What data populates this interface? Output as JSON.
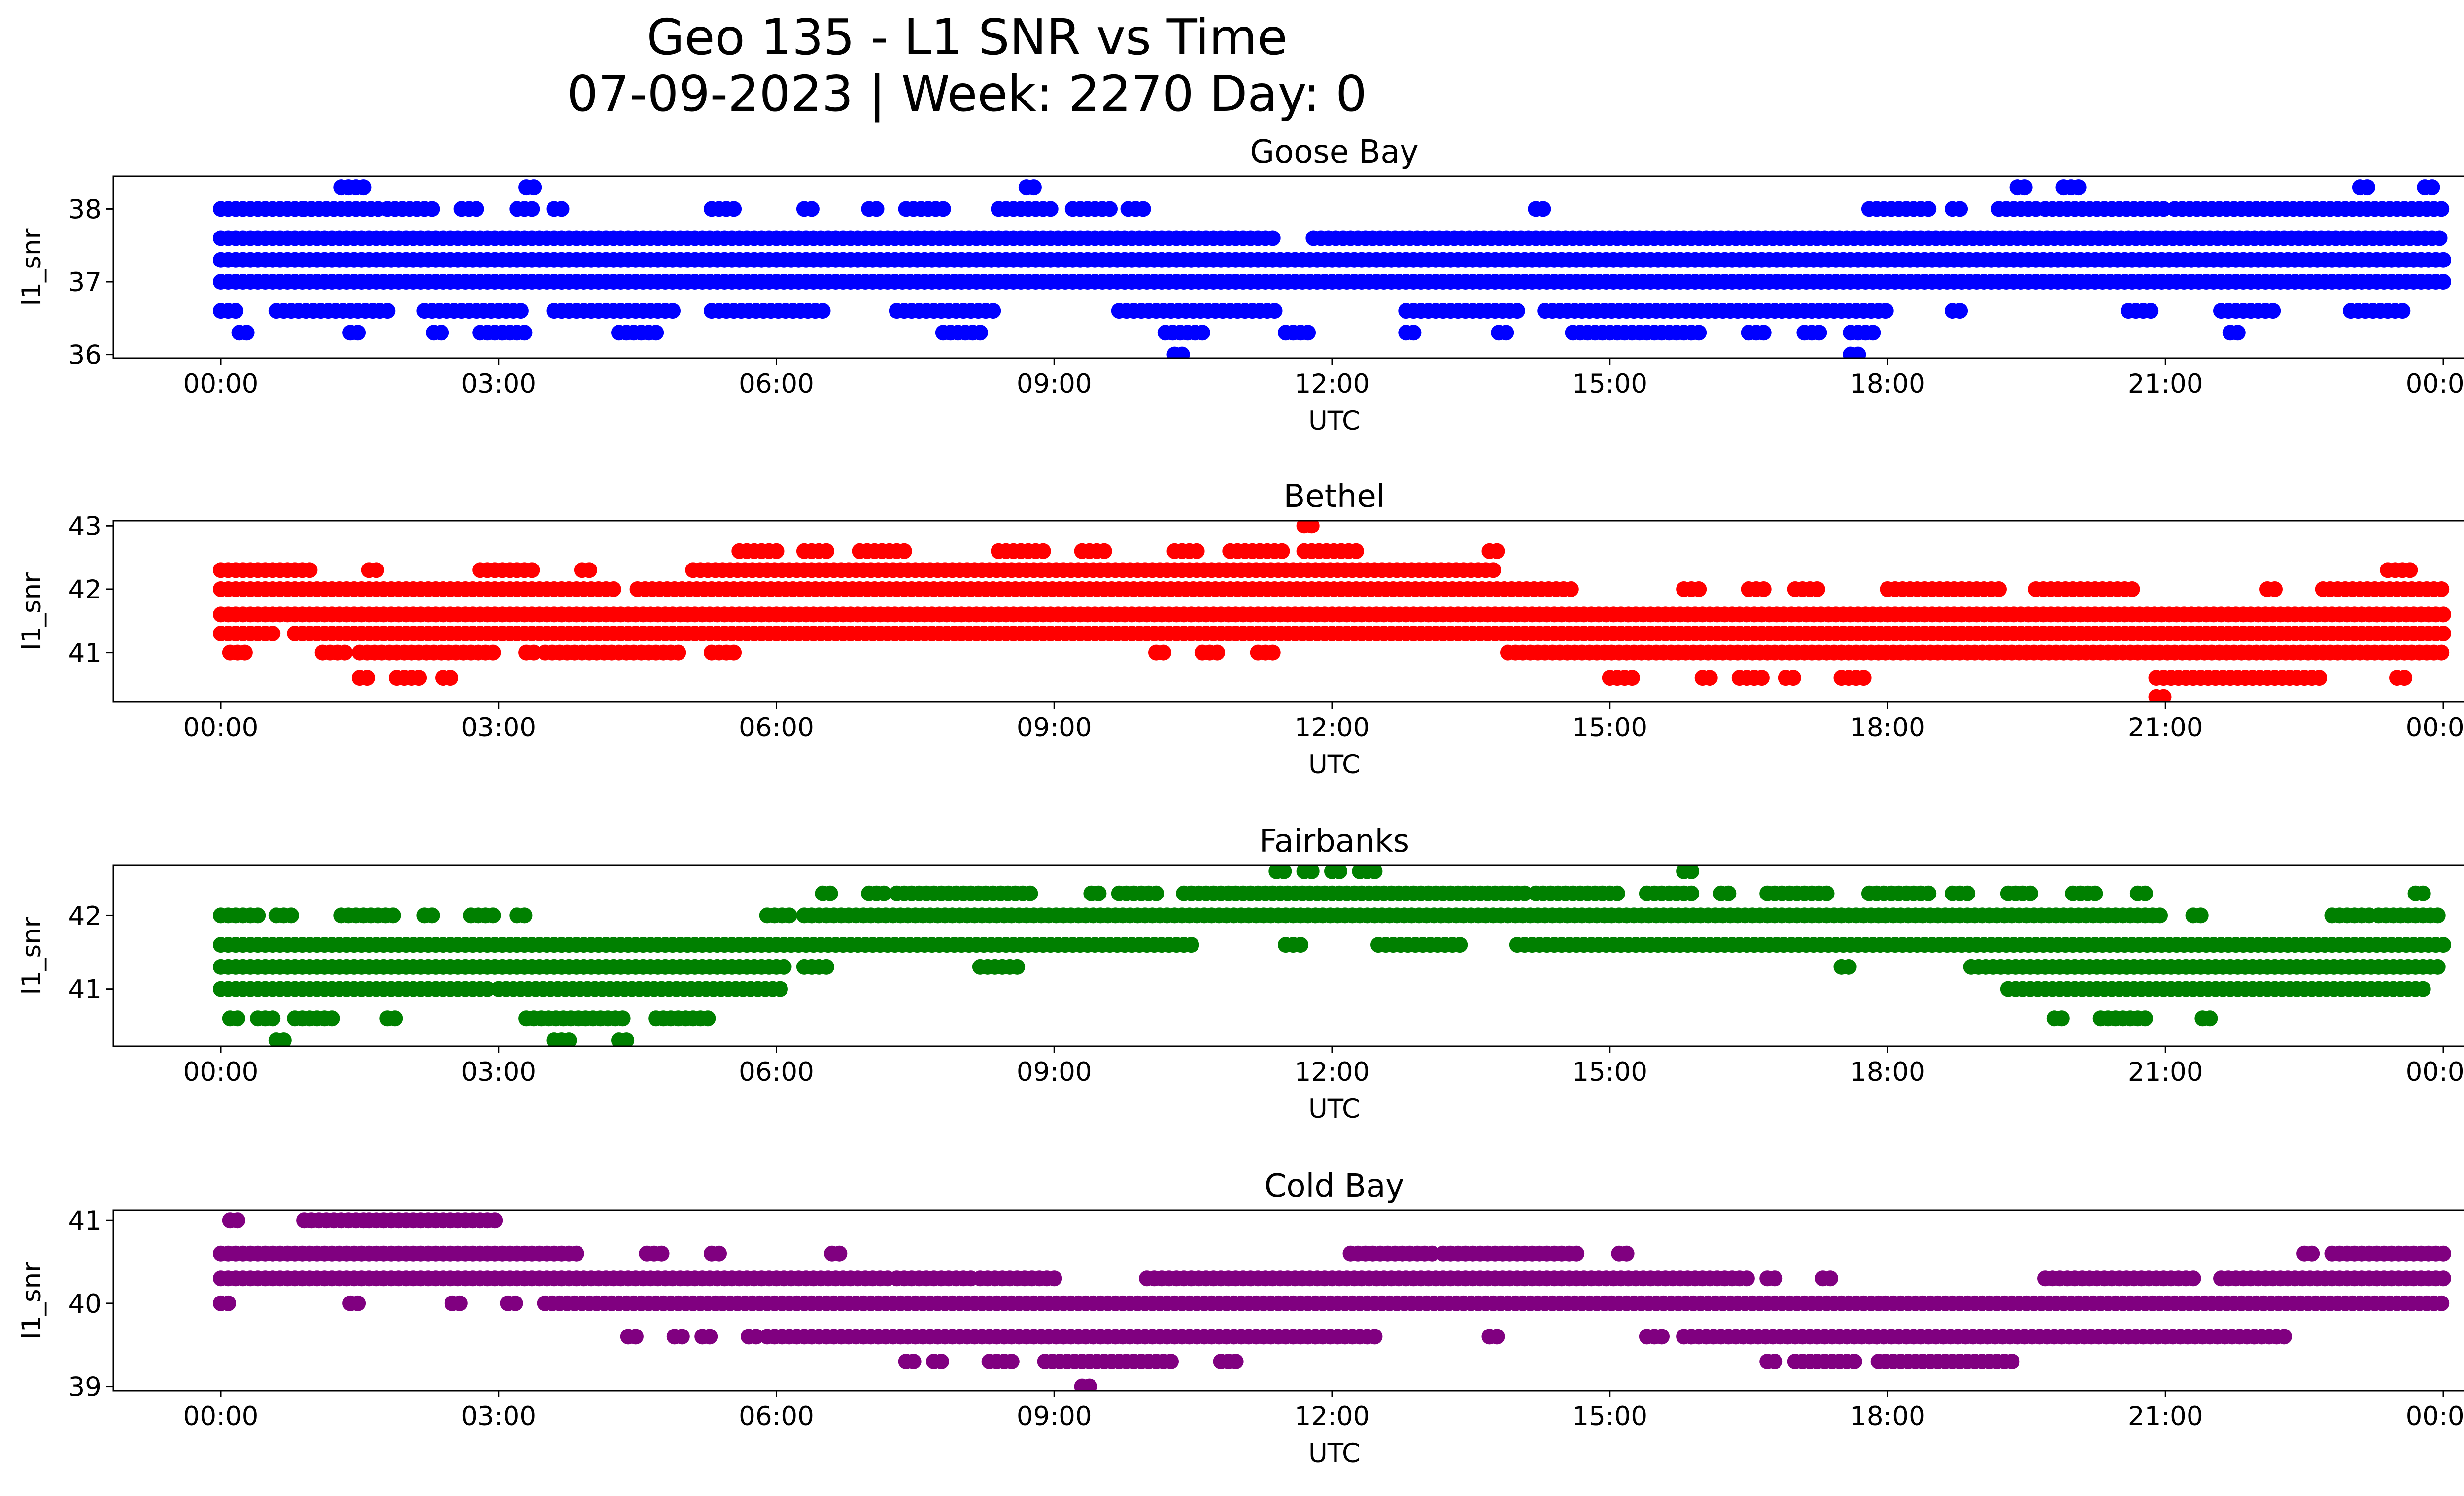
{
  "figure": {
    "title_line1": "Geo 135 - L1 SNR vs Time",
    "title_line2": "07-09-2023 | Week: 2270 Day: 0"
  },
  "chart_data": [
    {
      "type": "scatter",
      "title": "Goose Bay",
      "xlabel": "UTC",
      "ylabel": "l1_snr",
      "color": "#0000ff",
      "x_ticks": [
        "00:00",
        "03:00",
        "06:00",
        "09:00",
        "12:00",
        "15:00",
        "18:00",
        "21:00",
        "00:00"
      ],
      "y_ticks": [
        36,
        37,
        38
      ],
      "ylim": [
        35.95,
        38.45
      ],
      "series": [
        {
          "y": 37.0,
          "ranges": [
            [
              0.0,
              24.0
            ]
          ]
        },
        {
          "y": 37.3,
          "ranges": [
            [
              0.0,
              24.0
            ]
          ]
        },
        {
          "y": 37.6,
          "ranges": [
            [
              0.0,
              11.4
            ],
            [
              11.8,
              24.0
            ]
          ]
        },
        {
          "y": 36.6,
          "ranges": [
            [
              0.0,
              0.2
            ],
            [
              0.6,
              1.8
            ],
            [
              2.2,
              3.3
            ],
            [
              3.6,
              4.9
            ],
            [
              5.3,
              6.5
            ],
            [
              7.3,
              8.4
            ],
            [
              9.7,
              11.4
            ],
            [
              12.8,
              14.0
            ],
            [
              14.3,
              18.0
            ],
            [
              18.7,
              18.8
            ],
            [
              20.6,
              20.9
            ],
            [
              21.6,
              22.2
            ],
            [
              23.0,
              23.6
            ]
          ]
        },
        {
          "y": 36.3,
          "ranges": [
            [
              0.2,
              0.3
            ],
            [
              1.4,
              1.5
            ],
            [
              2.3,
              2.4
            ],
            [
              2.8,
              3.3
            ],
            [
              4.3,
              4.7
            ],
            [
              7.8,
              8.2
            ],
            [
              10.2,
              10.6
            ],
            [
              11.5,
              11.8
            ],
            [
              12.8,
              12.9
            ],
            [
              13.8,
              13.9
            ],
            [
              14.6,
              16.0
            ],
            [
              16.5,
              16.7
            ],
            [
              17.1,
              17.3
            ],
            [
              17.6,
              17.9
            ],
            [
              21.7,
              21.8
            ]
          ]
        },
        {
          "y": 38.0,
          "ranges": [
            [
              0.0,
              0.9
            ],
            [
              0.9,
              1.7
            ],
            [
              1.8,
              2.3
            ],
            [
              2.6,
              2.8
            ],
            [
              3.2,
              3.4
            ],
            [
              3.6,
              3.7
            ],
            [
              5.3,
              5.6
            ],
            [
              6.3,
              6.4
            ],
            [
              7.0,
              7.1
            ],
            [
              7.4,
              7.8
            ],
            [
              8.4,
              9.0
            ],
            [
              9.2,
              9.6
            ],
            [
              9.8,
              10.0
            ],
            [
              14.2,
              14.3
            ],
            [
              17.8,
              18.5
            ],
            [
              18.7,
              18.8
            ],
            [
              19.2,
              19.6
            ],
            [
              19.7,
              21.0
            ],
            [
              21.1,
              24.0
            ]
          ]
        },
        {
          "y": 38.3,
          "ranges": [
            [
              1.3,
              1.6
            ],
            [
              3.3,
              3.4
            ],
            [
              8.7,
              8.8
            ],
            [
              19.4,
              19.5
            ],
            [
              19.9,
              20.1
            ],
            [
              23.1,
              23.2
            ],
            [
              23.8,
              23.9
            ]
          ]
        },
        {
          "y": 36.0,
          "ranges": [
            [
              10.3,
              10.4
            ],
            [
              17.6,
              17.7
            ]
          ]
        }
      ]
    },
    {
      "type": "scatter",
      "title": "Bethel",
      "xlabel": "UTC",
      "ylabel": "l1_snr",
      "color": "#ff0000",
      "x_ticks": [
        "00:00",
        "03:00",
        "06:00",
        "09:00",
        "12:00",
        "15:00",
        "18:00",
        "21:00",
        "00:00"
      ],
      "y_ticks": [
        41,
        42,
        43
      ],
      "ylim": [
        40.22,
        43.08
      ],
      "series": [
        {
          "y": 41.6,
          "ranges": [
            [
              0.0,
              24.0
            ]
          ]
        },
        {
          "y": 41.3,
          "ranges": [
            [
              0.0,
              0.6
            ],
            [
              0.8,
              24.0
            ]
          ]
        },
        {
          "y": 42.0,
          "ranges": [
            [
              0.0,
              4.3
            ],
            [
              4.5,
              14.6
            ],
            [
              15.8,
              16.0
            ],
            [
              16.5,
              16.7
            ],
            [
              17.0,
              17.3
            ],
            [
              18.0,
              19.2
            ],
            [
              19.6,
              20.7
            ],
            [
              22.1,
              22.2
            ],
            [
              22.7,
              24.0
            ]
          ]
        },
        {
          "y": 42.3,
          "ranges": [
            [
              0.0,
              1.0
            ],
            [
              1.6,
              1.7
            ],
            [
              2.8,
              3.4
            ],
            [
              3.9,
              4.0
            ],
            [
              5.1,
              13.8
            ],
            [
              23.4,
              23.7
            ]
          ]
        },
        {
          "y": 41.0,
          "ranges": [
            [
              0.1,
              0.3
            ],
            [
              1.1,
              1.4
            ],
            [
              1.5,
              3.0
            ],
            [
              3.3,
              3.4
            ],
            [
              3.5,
              5.0
            ],
            [
              5.3,
              5.6
            ],
            [
              10.1,
              10.2
            ],
            [
              10.6,
              10.8
            ],
            [
              11.2,
              11.4
            ],
            [
              13.9,
              24.0
            ]
          ]
        },
        {
          "y": 42.6,
          "ranges": [
            [
              5.6,
              6.0
            ],
            [
              6.3,
              6.6
            ],
            [
              6.9,
              7.4
            ],
            [
              8.4,
              8.9
            ],
            [
              9.3,
              9.6
            ],
            [
              10.3,
              10.6
            ],
            [
              10.9,
              11.5
            ],
            [
              11.7,
              12.3
            ],
            [
              13.7,
              13.8
            ]
          ]
        },
        {
          "y": 40.6,
          "ranges": [
            [
              1.5,
              1.6
            ],
            [
              1.9,
              2.2
            ],
            [
              2.4,
              2.5
            ],
            [
              15.0,
              15.3
            ],
            [
              16.0,
              16.1
            ],
            [
              16.4,
              16.7
            ],
            [
              16.9,
              17.0
            ],
            [
              17.5,
              17.8
            ],
            [
              20.9,
              22.7
            ],
            [
              23.5,
              23.6
            ]
          ]
        },
        {
          "y": 40.3,
          "ranges": [
            [
              20.9,
              21.0
            ]
          ]
        },
        {
          "y": 43.0,
          "ranges": [
            [
              11.7,
              11.8
            ]
          ]
        }
      ]
    },
    {
      "type": "scatter",
      "title": "Fairbanks",
      "xlabel": "UTC",
      "ylabel": "l1_snr",
      "color": "#008000",
      "x_ticks": [
        "00:00",
        "03:00",
        "06:00",
        "09:00",
        "12:00",
        "15:00",
        "18:00",
        "21:00",
        "00:00"
      ],
      "y_ticks": [
        41,
        42
      ],
      "ylim": [
        40.22,
        42.68
      ],
      "series": [
        {
          "y": 41.6,
          "ranges": [
            [
              0.0,
              10.5
            ],
            [
              11.5,
              11.7
            ],
            [
              12.5,
              13.4
            ],
            [
              14.0,
              24.0
            ]
          ]
        },
        {
          "y": 41.3,
          "ranges": [
            [
              0.0,
              6.1
            ],
            [
              6.3,
              6.6
            ],
            [
              8.2,
              8.6
            ],
            [
              17.5,
              17.6
            ],
            [
              18.9,
              24.0
            ]
          ]
        },
        {
          "y": 41.0,
          "ranges": [
            [
              0.0,
              2.9
            ],
            [
              3.0,
              6.1
            ],
            [
              19.3,
              23.8
            ]
          ]
        },
        {
          "y": 42.0,
          "ranges": [
            [
              0.0,
              0.4
            ],
            [
              0.6,
              0.8
            ],
            [
              1.3,
              1.9
            ],
            [
              2.2,
              2.3
            ],
            [
              2.7,
              3.0
            ],
            [
              3.2,
              3.3
            ],
            [
              5.9,
              6.2
            ],
            [
              6.3,
              21.0
            ],
            [
              21.3,
              21.4
            ],
            [
              22.8,
              23.2
            ],
            [
              23.3,
              24.0
            ]
          ]
        },
        {
          "y": 42.3,
          "ranges": [
            [
              6.5,
              6.6
            ],
            [
              7.0,
              7.2
            ],
            [
              7.3,
              8.8
            ],
            [
              9.4,
              9.5
            ],
            [
              9.7,
              10.1
            ],
            [
              10.4,
              14.1
            ],
            [
              14.2,
              15.1
            ],
            [
              15.4,
              15.9
            ],
            [
              16.2,
              16.3
            ],
            [
              16.7,
              17.4
            ],
            [
              17.8,
              18.5
            ],
            [
              18.7,
              18.9
            ],
            [
              19.3,
              19.6
            ],
            [
              20.0,
              20.3
            ],
            [
              20.7,
              20.8
            ],
            [
              23.7,
              23.8
            ]
          ]
        },
        {
          "y": 40.6,
          "ranges": [
            [
              0.1,
              0.2
            ],
            [
              0.4,
              0.6
            ],
            [
              0.8,
              1.2
            ],
            [
              1.8,
              1.9
            ],
            [
              3.3,
              4.4
            ],
            [
              4.7,
              5.3
            ],
            [
              19.8,
              19.9
            ],
            [
              20.3,
              20.8
            ],
            [
              21.4,
              21.5
            ]
          ]
        },
        {
          "y": 40.3,
          "ranges": [
            [
              0.6,
              0.7
            ],
            [
              3.6,
              3.8
            ],
            [
              4.3,
              4.4
            ]
          ]
        },
        {
          "y": 42.6,
          "ranges": [
            [
              11.4,
              11.5
            ],
            [
              11.7,
              11.8
            ],
            [
              12.0,
              12.1
            ],
            [
              12.3,
              12.5
            ],
            [
              15.8,
              15.9
            ]
          ]
        }
      ]
    },
    {
      "type": "scatter",
      "title": "Cold Bay",
      "xlabel": "UTC",
      "ylabel": "l1_snr",
      "color": "#800080",
      "x_ticks": [
        "00:00",
        "03:00",
        "06:00",
        "09:00",
        "12:00",
        "15:00",
        "18:00",
        "21:00",
        "00:00"
      ],
      "y_ticks": [
        39,
        40,
        41
      ],
      "ylim": [
        38.95,
        41.12
      ],
      "series": [
        {
          "y": 40.3,
          "ranges": [
            [
              0.0,
              7.2
            ],
            [
              7.3,
              8.1
            ],
            [
              8.2,
              9.0
            ],
            [
              10.0,
              16.5
            ],
            [
              16.7,
              16.8
            ],
            [
              17.3,
              17.4
            ],
            [
              19.7,
              21.3
            ],
            [
              21.6,
              24.0
            ]
          ]
        },
        {
          "y": 40.6,
          "ranges": [
            [
              0.0,
              3.9
            ],
            [
              4.6,
              4.8
            ],
            [
              5.3,
              5.4
            ],
            [
              6.6,
              6.7
            ],
            [
              12.2,
              13.1
            ],
            [
              13.2,
              14.7
            ],
            [
              15.1,
              15.2
            ],
            [
              22.5,
              22.6
            ],
            [
              22.8,
              24.0
            ]
          ]
        },
        {
          "y": 40.0,
          "ranges": [
            [
              0.0,
              0.1
            ],
            [
              1.4,
              1.5
            ],
            [
              2.5,
              2.6
            ],
            [
              3.1,
              3.2
            ],
            [
              3.5,
              24.0
            ]
          ]
        },
        {
          "y": 41.0,
          "ranges": [
            [
              0.1,
              0.2
            ],
            [
              0.9,
              1.6
            ],
            [
              1.6,
              3.0
            ]
          ]
        },
        {
          "y": 39.6,
          "ranges": [
            [
              4.4,
              4.5
            ],
            [
              4.9,
              5.0
            ],
            [
              5.2,
              5.3
            ],
            [
              5.7,
              5.8
            ],
            [
              5.9,
              12.5
            ],
            [
              13.7,
              13.8
            ],
            [
              15.4,
              15.6
            ],
            [
              15.8,
              22.3
            ]
          ]
        },
        {
          "y": 39.3,
          "ranges": [
            [
              7.4,
              7.5
            ],
            [
              7.7,
              7.8
            ],
            [
              8.3,
              8.6
            ],
            [
              8.9,
              10.3
            ],
            [
              10.8,
              11.0
            ],
            [
              16.7,
              16.8
            ],
            [
              17.0,
              17.7
            ],
            [
              17.9,
              19.4
            ]
          ]
        },
        {
          "y": 39.0,
          "ranges": [
            [
              9.3,
              9.4
            ]
          ]
        }
      ]
    }
  ]
}
